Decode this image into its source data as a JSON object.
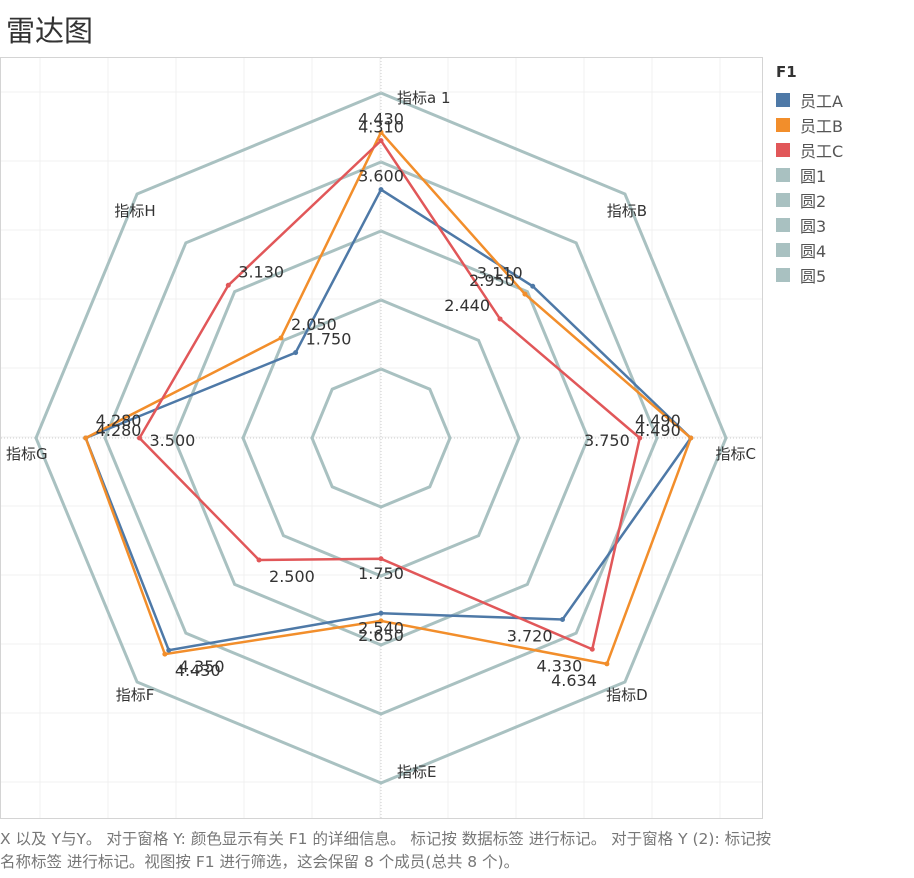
{
  "title": "雷达图",
  "legend": {
    "title": "F1",
    "items": [
      {
        "label": "员工A",
        "color": "#4e79a7"
      },
      {
        "label": "员工B",
        "color": "#f28e2b"
      },
      {
        "label": "员工C",
        "color": "#e15759"
      },
      {
        "label": "圆1",
        "color": "#a9c1c1"
      },
      {
        "label": "圆2",
        "color": "#a9c1c1"
      },
      {
        "label": "圆3",
        "color": "#a9c1c1"
      },
      {
        "label": "圆4",
        "color": "#a9c1c1"
      },
      {
        "label": "圆5",
        "color": "#a9c1c1"
      }
    ]
  },
  "caption": "X 以及 Y与Y。 对于窗格 Y: 颜色显示有关 F1 的详细信息。 标记按 数据标签 进行标记。 对于窗格 Y (2): 标记按 名称标签 进行标记。视图按 F1 进行筛选，这会保留 8 个成员(总共 8 个)。",
  "chart_data": {
    "type": "radar",
    "axes": [
      "指标a 1",
      "指标B",
      "指标C",
      "指标D",
      "指标E",
      "指标F",
      "指标G",
      "指标H"
    ],
    "series": [
      {
        "name": "员工A",
        "color": "#4e79a7",
        "values": [
          3.6,
          3.11,
          4.49,
          3.72,
          2.54,
          4.35,
          4.28,
          1.75
        ]
      },
      {
        "name": "员工B",
        "color": "#f28e2b",
        "values": [
          4.43,
          2.95,
          4.49,
          4.63,
          2.65,
          4.43,
          4.28,
          2.05
        ]
      },
      {
        "name": "员工C",
        "color": "#e15759",
        "values": [
          4.31,
          2.44,
          3.75,
          4.33,
          1.75,
          2.5,
          3.5,
          3.13
        ]
      }
    ],
    "data_labels": [
      [
        "3.600",
        "3.110",
        "4.490",
        "3.720",
        "2.540",
        "4.350",
        "4.280",
        "1.750"
      ],
      [
        "4.430",
        "2.950",
        "4.490",
        "4.634",
        "2.650",
        "4.430",
        "4.280",
        "2.050"
      ],
      [
        "4.310",
        "2.440",
        "3.750",
        "4.330",
        "1.750",
        "2.500",
        "3.500",
        "3.130"
      ]
    ],
    "rings": [
      {
        "name": "圆1",
        "value": 1
      },
      {
        "name": "圆2",
        "value": 2
      },
      {
        "name": "圆3",
        "value": 3
      },
      {
        "name": "圆4",
        "value": 4
      },
      {
        "name": "圆5",
        "value": 5
      }
    ],
    "ring_color": "#a9c1c1",
    "range": [
      0,
      5
    ],
    "grid": true
  }
}
